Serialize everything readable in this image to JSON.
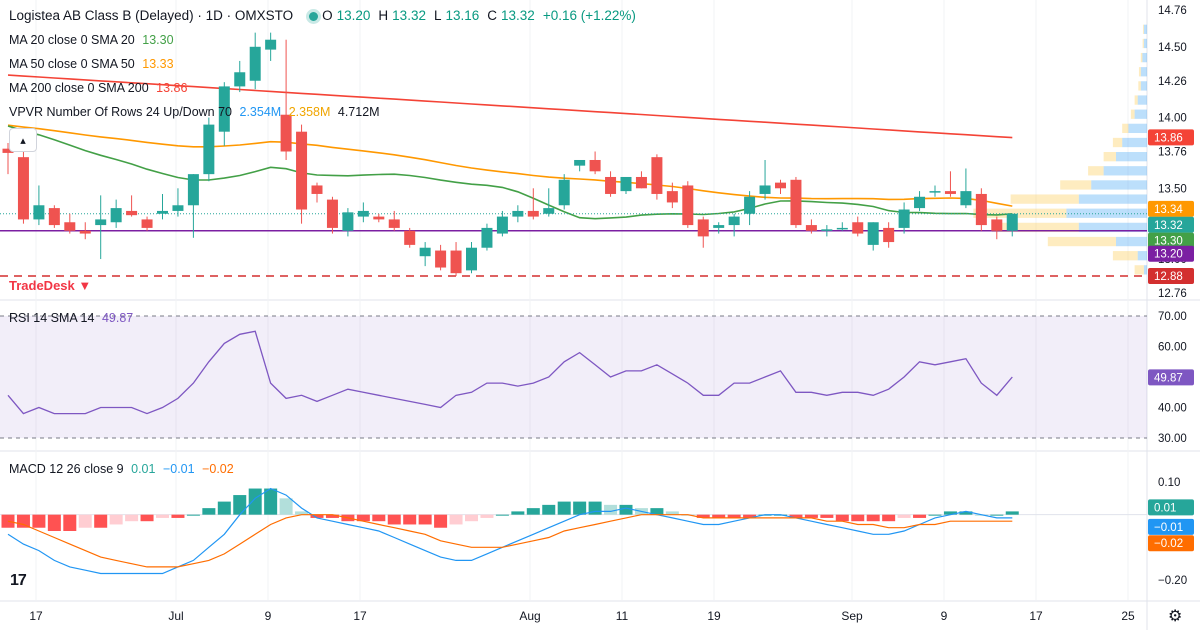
{
  "header": {
    "title": "Logistea AB Class B (Delayed) · 1D · OMXSTO",
    "ohlc": [
      {
        "k": "O",
        "v": "13.20"
      },
      {
        "k": "H",
        "v": "13.32"
      },
      {
        "k": "L",
        "v": "13.16"
      },
      {
        "k": "C",
        "v": "13.32"
      }
    ],
    "change": "+0.16 (+1.22%)"
  },
  "indicators": {
    "ma20": {
      "label": "MA 20 close 0 SMA 20",
      "value": "13.30",
      "color": "#43a047"
    },
    "ma50": {
      "label": "MA 50 close 0 SMA 50",
      "value": "13.33",
      "color": "#ff9800"
    },
    "ma200": {
      "label": "MA 200 close 0 SMA 200",
      "value": "13.86",
      "color": "#f44336"
    },
    "vpvr": {
      "label": "VPVR Number Of Rows 24 Up/Down 70",
      "up": "2.354M",
      "down": "2.358M",
      "total": "4.712M"
    },
    "rsi": {
      "label": "RSI 14 SMA 14",
      "value": "49.87",
      "color": "#7e57c2"
    },
    "macd": {
      "label": "MACD 12 26 close 9",
      "hist": "0.01",
      "macd": "−0.01",
      "signal": "−0.02"
    }
  },
  "annotation": "TradeDesk",
  "colors": {
    "up": "#26a69a",
    "down": "#ef5350",
    "rsi": "#7e57c2",
    "macd": "#2196f3",
    "signal": "#ff6d00"
  },
  "chart_data": [
    {
      "type": "candlestick",
      "name": "price",
      "ylim": [
        12.7,
        14.8
      ],
      "y_ticks": [
        "14.76",
        "14.50",
        "14.26",
        "14.00",
        "13.76",
        "13.50",
        "13.00",
        "12.76"
      ],
      "x_ticks": [
        "17",
        "Jul",
        "9",
        "17",
        "Aug",
        "11",
        "19",
        "Sep",
        "9",
        "17",
        "25"
      ],
      "candles": [
        [
          13.78,
          13.82,
          13.6,
          13.75
        ],
        [
          13.72,
          13.76,
          13.25,
          13.28
        ],
        [
          13.28,
          13.52,
          13.24,
          13.38
        ],
        [
          13.36,
          13.38,
          13.22,
          13.24
        ],
        [
          13.26,
          13.32,
          13.18,
          13.2
        ],
        [
          13.2,
          13.26,
          13.14,
          13.18
        ],
        [
          13.24,
          13.45,
          13.0,
          13.28
        ],
        [
          13.26,
          13.42,
          13.22,
          13.36
        ],
        [
          13.34,
          13.45,
          13.3,
          13.31
        ],
        [
          13.28,
          13.3,
          13.2,
          13.22
        ],
        [
          13.32,
          13.46,
          13.28,
          13.34
        ],
        [
          13.34,
          13.5,
          13.3,
          13.38
        ],
        [
          13.38,
          13.6,
          13.15,
          13.6
        ],
        [
          13.6,
          14.0,
          13.55,
          13.95
        ],
        [
          13.9,
          14.25,
          13.8,
          14.22
        ],
        [
          14.22,
          14.4,
          14.18,
          14.32
        ],
        [
          14.26,
          14.6,
          14.2,
          14.5
        ],
        [
          14.48,
          14.6,
          14.4,
          14.55
        ],
        [
          14.02,
          14.55,
          13.7,
          13.76
        ],
        [
          13.9,
          13.95,
          13.25,
          13.35
        ],
        [
          13.52,
          13.54,
          13.4,
          13.46
        ],
        [
          13.42,
          13.44,
          13.18,
          13.22
        ],
        [
          13.2,
          13.36,
          13.16,
          13.33
        ],
        [
          13.3,
          13.4,
          13.26,
          13.34
        ],
        [
          13.3,
          13.32,
          13.26,
          13.28
        ],
        [
          13.28,
          13.34,
          13.2,
          13.22
        ],
        [
          13.2,
          13.22,
          13.08,
          13.1
        ],
        [
          13.02,
          13.12,
          12.95,
          13.08
        ],
        [
          13.06,
          13.1,
          12.92,
          12.94
        ],
        [
          13.06,
          13.12,
          12.88,
          12.9
        ],
        [
          12.92,
          13.12,
          12.9,
          13.08
        ],
        [
          13.08,
          13.25,
          13.06,
          13.22
        ],
        [
          13.18,
          13.34,
          13.16,
          13.3
        ],
        [
          13.3,
          13.38,
          13.26,
          13.34
        ],
        [
          13.34,
          13.5,
          13.28,
          13.3
        ],
        [
          13.32,
          13.5,
          13.3,
          13.36
        ],
        [
          13.38,
          13.6,
          13.35,
          13.56
        ],
        [
          13.66,
          13.7,
          13.62,
          13.7
        ],
        [
          13.7,
          13.76,
          13.6,
          13.62
        ],
        [
          13.58,
          13.62,
          13.44,
          13.46
        ],
        [
          13.48,
          13.58,
          13.46,
          13.58
        ],
        [
          13.58,
          13.62,
          13.5,
          13.5
        ],
        [
          13.72,
          13.74,
          13.42,
          13.46
        ],
        [
          13.48,
          13.54,
          13.36,
          13.4
        ],
        [
          13.52,
          13.55,
          13.22,
          13.24
        ],
        [
          13.28,
          13.3,
          13.08,
          13.16
        ],
        [
          13.22,
          13.26,
          13.18,
          13.24
        ],
        [
          13.24,
          13.32,
          13.16,
          13.3
        ],
        [
          13.32,
          13.48,
          13.24,
          13.44
        ],
        [
          13.46,
          13.7,
          13.42,
          13.52
        ],
        [
          13.54,
          13.56,
          13.46,
          13.5
        ],
        [
          13.56,
          13.58,
          13.22,
          13.24
        ],
        [
          13.24,
          13.28,
          13.18,
          13.2
        ],
        [
          13.2,
          13.24,
          13.16,
          13.21
        ],
        [
          13.22,
          13.26,
          13.2,
          13.22
        ],
        [
          13.26,
          13.3,
          13.16,
          13.18
        ],
        [
          13.1,
          13.26,
          13.06,
          13.26
        ],
        [
          13.22,
          13.26,
          13.08,
          13.12
        ],
        [
          13.22,
          13.4,
          13.18,
          13.35
        ],
        [
          13.36,
          13.48,
          13.34,
          13.44
        ],
        [
          13.48,
          13.52,
          13.44,
          13.48
        ],
        [
          13.48,
          13.62,
          13.44,
          13.46
        ],
        [
          13.38,
          13.64,
          13.36,
          13.48
        ],
        [
          13.46,
          13.5,
          13.2,
          13.24
        ],
        [
          13.28,
          13.3,
          13.14,
          13.2
        ],
        [
          13.2,
          13.32,
          13.16,
          13.32
        ]
      ],
      "price_labels": [
        "13.86",
        "13.34",
        "13.32",
        "13.30",
        "13.20",
        "12.88"
      ]
    },
    {
      "type": "line",
      "name": "RSI",
      "ylim": [
        25,
        75
      ],
      "y_ticks": [
        "70.00",
        "60.00",
        "50.00",
        "40.00",
        "30.00"
      ],
      "bands": [
        30,
        70
      ],
      "values": [
        44,
        38,
        40,
        38,
        38,
        38,
        40,
        40,
        40,
        38,
        40,
        43,
        48,
        55,
        61,
        64,
        65,
        48,
        43,
        44,
        42,
        44,
        46,
        45,
        44,
        43,
        42,
        41,
        40,
        44,
        45,
        48,
        48,
        47,
        48,
        50,
        55,
        58,
        54,
        50,
        52,
        52,
        54,
        51,
        48,
        44,
        44,
        48,
        48,
        50,
        52,
        45,
        45,
        44,
        45,
        45,
        44,
        46,
        50,
        55,
        54,
        55,
        56,
        48,
        44,
        50
      ]
    },
    {
      "type": "bar",
      "name": "MACD",
      "ylim": [
        -0.27,
        0.15
      ],
      "y_ticks": [
        "0.10",
        "−0.20"
      ],
      "histogram": [
        -0.04,
        -0.04,
        -0.04,
        -0.05,
        -0.05,
        -0.04,
        -0.04,
        -0.03,
        -0.02,
        -0.02,
        -0.01,
        -0.01,
        0.0,
        0.02,
        0.04,
        0.06,
        0.08,
        0.08,
        0.05,
        0.01,
        -0.01,
        -0.01,
        -0.02,
        -0.02,
        -0.02,
        -0.03,
        -0.03,
        -0.03,
        -0.04,
        -0.03,
        -0.02,
        -0.01,
        0.0,
        0.01,
        0.02,
        0.03,
        0.04,
        0.04,
        0.04,
        0.03,
        0.03,
        0.02,
        0.02,
        0.01,
        0.0,
        -0.01,
        -0.01,
        -0.01,
        -0.01,
        0.0,
        0.0,
        -0.01,
        -0.01,
        -0.01,
        -0.02,
        -0.02,
        -0.02,
        -0.02,
        -0.01,
        -0.01,
        0.0,
        0.01,
        0.01,
        0.0,
        0.0,
        0.01
      ],
      "macd": [
        -0.06,
        -0.09,
        -0.11,
        -0.14,
        -0.16,
        -0.17,
        -0.18,
        -0.18,
        -0.18,
        -0.18,
        -0.18,
        -0.16,
        -0.14,
        -0.1,
        -0.06,
        0.0,
        0.05,
        0.08,
        0.06,
        0.02,
        -0.01,
        -0.02,
        -0.03,
        -0.04,
        -0.05,
        -0.07,
        -0.09,
        -0.11,
        -0.13,
        -0.14,
        -0.14,
        -0.12,
        -0.1,
        -0.08,
        -0.06,
        -0.04,
        -0.02,
        0.0,
        0.01,
        0.01,
        0.02,
        0.01,
        0.0,
        -0.01,
        -0.02,
        -0.03,
        -0.03,
        -0.02,
        -0.01,
        0.0,
        0.0,
        -0.01,
        -0.02,
        -0.03,
        -0.04,
        -0.05,
        -0.06,
        -0.06,
        -0.05,
        -0.03,
        -0.01,
        0.0,
        0.01,
        0.0,
        -0.01,
        -0.01
      ],
      "signal": [
        -0.02,
        -0.03,
        -0.05,
        -0.07,
        -0.09,
        -0.11,
        -0.13,
        -0.14,
        -0.15,
        -0.16,
        -0.16,
        -0.16,
        -0.15,
        -0.14,
        -0.12,
        -0.09,
        -0.06,
        -0.03,
        -0.01,
        0.0,
        0.0,
        0.0,
        -0.01,
        -0.02,
        -0.03,
        -0.04,
        -0.05,
        -0.06,
        -0.08,
        -0.09,
        -0.1,
        -0.1,
        -0.1,
        -0.09,
        -0.08,
        -0.07,
        -0.05,
        -0.04,
        -0.03,
        -0.02,
        -0.01,
        0.0,
        0.0,
        0.0,
        0.0,
        -0.01,
        -0.01,
        -0.01,
        -0.01,
        -0.01,
        -0.01,
        -0.01,
        -0.01,
        -0.02,
        -0.02,
        -0.03,
        -0.03,
        -0.04,
        -0.04,
        -0.03,
        -0.03,
        -0.02,
        -0.02,
        -0.02,
        -0.02,
        -0.02
      ]
    }
  ]
}
